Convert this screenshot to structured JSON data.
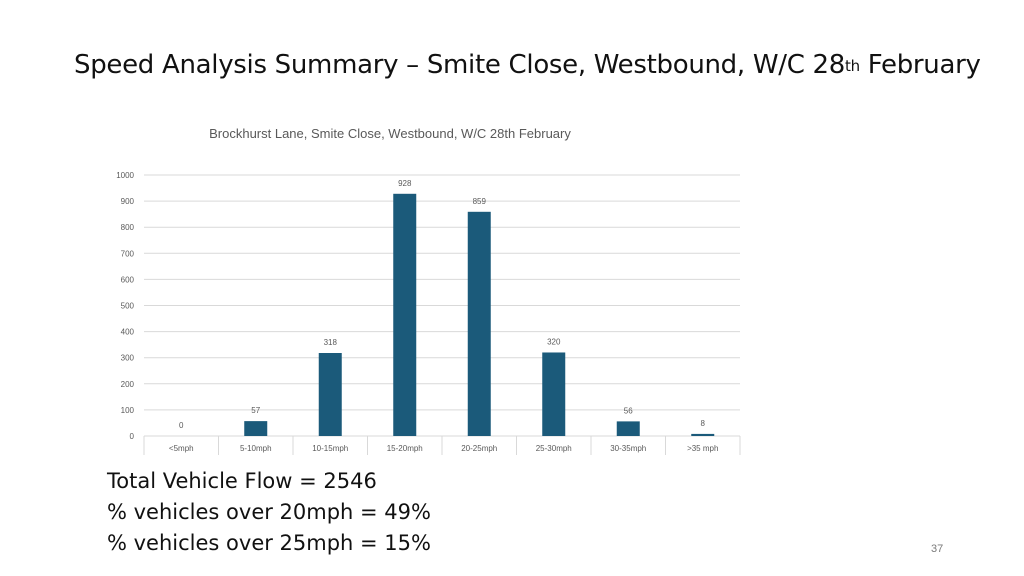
{
  "slide": {
    "title_main": "Speed Analysis Summary – Smite Close, Westbound, W/C 28",
    "title_sup": "th",
    "title_end": " February",
    "page_number": "37"
  },
  "summary": {
    "total_flow": "Total Vehicle Flow = 2546",
    "over_20": "% vehicles over 20mph = 49%",
    "over_25": "% vehicles over 25mph = 15%"
  },
  "colors": {
    "bar": "#1b5a7a",
    "grid": "#d9d9d9",
    "axis_text": "#595959",
    "title_text": "#595959"
  },
  "chart_data": {
    "type": "bar",
    "title": "Brockhurst Lane, Smite Close, Westbound, W/C 28th February",
    "xlabel": "",
    "ylabel": "",
    "categories": [
      "<5mph",
      "5-10mph",
      "10-15mph",
      "15-20mph",
      "20-25mph",
      "25-30mph",
      "30-35mph",
      ">35 mph"
    ],
    "values": [
      0,
      57,
      318,
      928,
      859,
      320,
      56,
      8
    ],
    "ylim": [
      0,
      1000
    ],
    "yticks": [
      0,
      100,
      200,
      300,
      400,
      500,
      600,
      700,
      800,
      900,
      1000
    ],
    "grid": true,
    "data_labels": true,
    "legend": "none"
  }
}
